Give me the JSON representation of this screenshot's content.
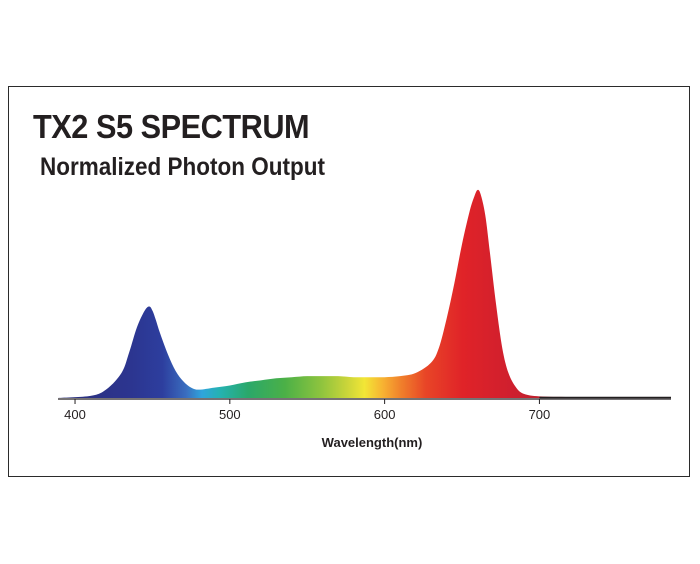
{
  "chart_data": {
    "type": "area",
    "title": "TX2 S5 SPECTRUM",
    "subtitle": "Normalized Photon Output",
    "xlabel": "Wavelength(nm)",
    "ylabel": "",
    "xlim": [
      389,
      785
    ],
    "ylim": [
      0,
      1
    ],
    "xticks": [
      400,
      500,
      600,
      700
    ],
    "grid": false,
    "series": [
      {
        "name": "Normalized Photon Output",
        "x": [
          389,
          410,
          420,
          430,
          435,
          440,
          445,
          448,
          450,
          452,
          455,
          460,
          465,
          470,
          475,
          480,
          490,
          500,
          510,
          520,
          530,
          540,
          550,
          560,
          570,
          580,
          590,
          600,
          610,
          620,
          630,
          635,
          640,
          645,
          650,
          655,
          658,
          660,
          662,
          665,
          668,
          672,
          676,
          680,
          685,
          690,
          700,
          720,
          750,
          785
        ],
        "y": [
          0.0,
          0.01,
          0.04,
          0.12,
          0.22,
          0.34,
          0.42,
          0.44,
          0.42,
          0.38,
          0.31,
          0.21,
          0.13,
          0.08,
          0.05,
          0.04,
          0.05,
          0.06,
          0.075,
          0.085,
          0.095,
          0.1,
          0.105,
          0.105,
          0.105,
          0.1,
          0.1,
          0.1,
          0.105,
          0.12,
          0.17,
          0.24,
          0.38,
          0.55,
          0.74,
          0.9,
          0.97,
          1.0,
          0.98,
          0.88,
          0.7,
          0.45,
          0.24,
          0.12,
          0.05,
          0.02,
          0.008,
          0.005,
          0.004,
          0.003
        ]
      }
    ]
  }
}
